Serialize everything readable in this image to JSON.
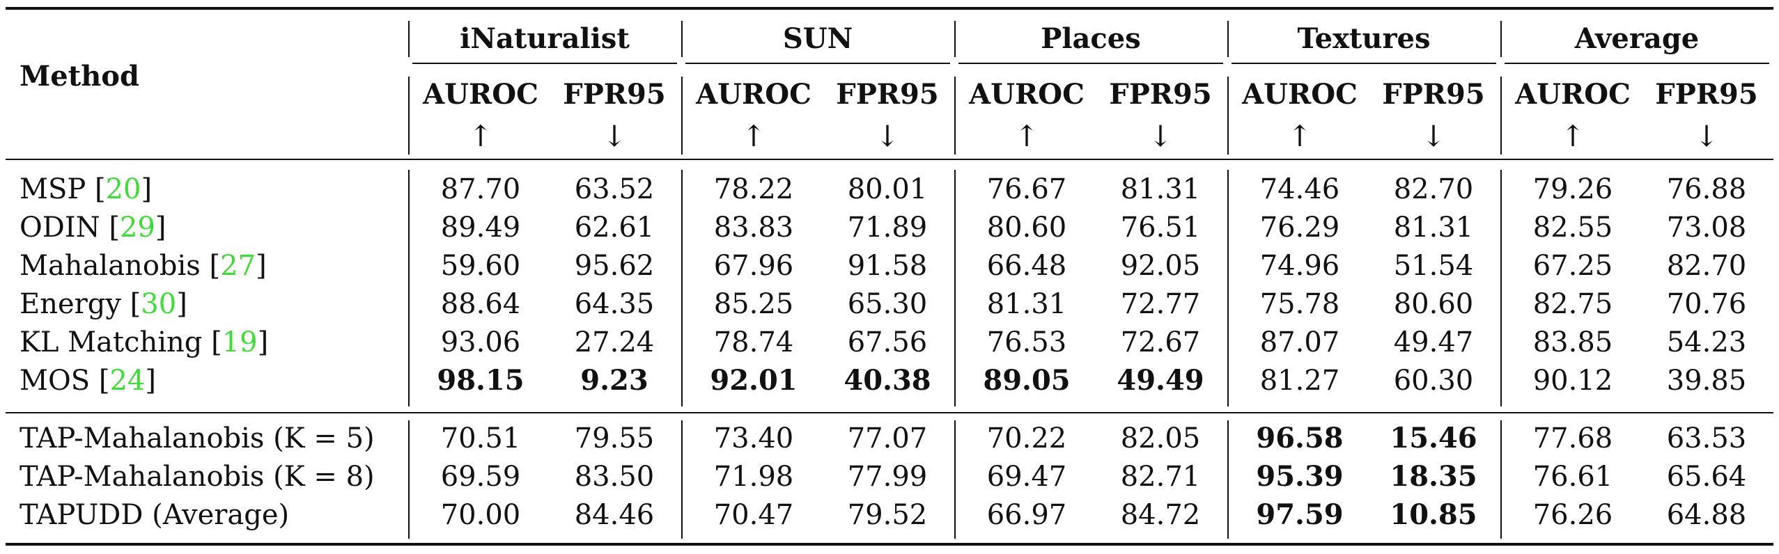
{
  "header": {
    "method_label": "Method",
    "groups": [
      "iNaturalist",
      "SUN",
      "Places",
      "Textures",
      "Average"
    ],
    "metrics": [
      "AUROC",
      "FPR95"
    ],
    "arrows": [
      "↑",
      "↓"
    ]
  },
  "rows": [
    {
      "name": "MSP [",
      "ref": "20",
      "close": "]",
      "values": [
        "87.70",
        "63.52",
        "78.22",
        "80.01",
        "76.67",
        "81.31",
        "74.46",
        "82.70",
        "79.26",
        "76.88"
      ],
      "bold": [
        false,
        false,
        false,
        false,
        false,
        false,
        false,
        false,
        false,
        false
      ]
    },
    {
      "name": "ODIN [",
      "ref": "29",
      "close": "]",
      "values": [
        "89.49",
        "62.61",
        "83.83",
        "71.89",
        "80.60",
        "76.51",
        "76.29",
        "81.31",
        "82.55",
        "73.08"
      ],
      "bold": [
        false,
        false,
        false,
        false,
        false,
        false,
        false,
        false,
        false,
        false
      ]
    },
    {
      "name": "Mahalanobis [",
      "ref": "27",
      "close": "]",
      "values": [
        "59.60",
        "95.62",
        "67.96",
        "91.58",
        "66.48",
        "92.05",
        "74.96",
        "51.54",
        "67.25",
        "82.70"
      ],
      "bold": [
        false,
        false,
        false,
        false,
        false,
        false,
        false,
        false,
        false,
        false
      ]
    },
    {
      "name": "Energy [",
      "ref": "30",
      "close": "]",
      "values": [
        "88.64",
        "64.35",
        "85.25",
        "65.30",
        "81.31",
        "72.77",
        "75.78",
        "80.60",
        "82.75",
        "70.76"
      ],
      "bold": [
        false,
        false,
        false,
        false,
        false,
        false,
        false,
        false,
        false,
        false
      ]
    },
    {
      "name": "KL Matching [",
      "ref": "19",
      "close": "]",
      "values": [
        "93.06",
        "27.24",
        "78.74",
        "67.56",
        "76.53",
        "72.67",
        "87.07",
        "49.47",
        "83.85",
        "54.23"
      ],
      "bold": [
        false,
        false,
        false,
        false,
        false,
        false,
        false,
        false,
        false,
        false
      ]
    },
    {
      "name": "MOS [",
      "ref": "24",
      "close": "]",
      "values": [
        "98.15",
        "9.23",
        "92.01",
        "40.38",
        "89.05",
        "49.49",
        "81.27",
        "60.30",
        "90.12",
        "39.85"
      ],
      "bold": [
        true,
        true,
        true,
        true,
        true,
        true,
        false,
        false,
        false,
        false
      ]
    },
    {
      "name": "TAP-Mahalanobis (K = 5)",
      "ref": "",
      "close": "",
      "values": [
        "70.51",
        "79.55",
        "73.40",
        "77.07",
        "70.22",
        "82.05",
        "96.58",
        "15.46",
        "77.68",
        "63.53"
      ],
      "bold": [
        false,
        false,
        false,
        false,
        false,
        false,
        true,
        true,
        false,
        false
      ]
    },
    {
      "name": "TAP-Mahalanobis (K = 8)",
      "ref": "",
      "close": "",
      "values": [
        "69.59",
        "83.50",
        "71.98",
        "77.99",
        "69.47",
        "82.71",
        "95.39",
        "18.35",
        "76.61",
        "65.64"
      ],
      "bold": [
        false,
        false,
        false,
        false,
        false,
        false,
        true,
        true,
        false,
        false
      ]
    },
    {
      "name": "TAPUDD (Average)",
      "ref": "",
      "close": "",
      "values": [
        "70.00",
        "84.46",
        "70.47",
        "79.52",
        "66.97",
        "84.72",
        "97.59",
        "10.85",
        "76.26",
        "64.88"
      ],
      "bold": [
        false,
        false,
        false,
        false,
        false,
        false,
        true,
        true,
        false,
        false
      ]
    }
  ]
}
